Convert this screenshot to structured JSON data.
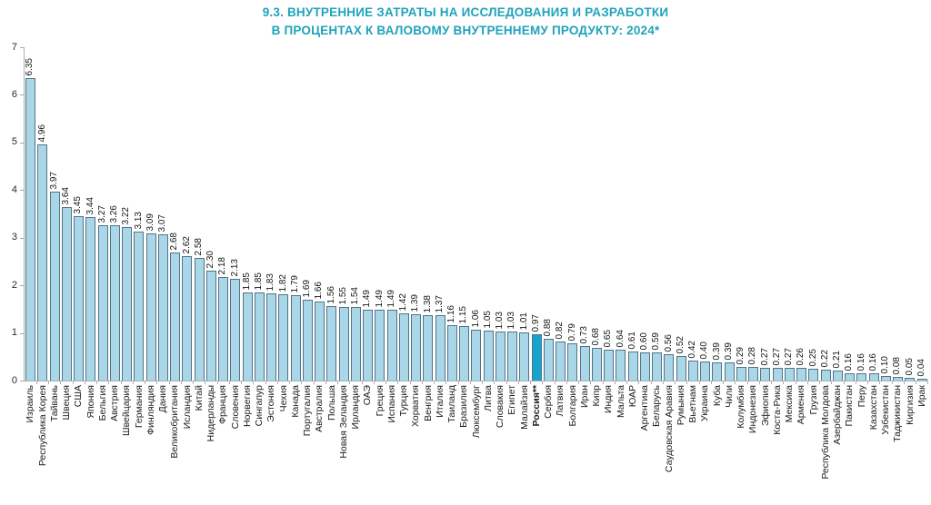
{
  "header": {
    "title_line1": "9.3. ВНУТРЕННИЕ ЗАТРАТЫ НА ИССЛЕДОВАНИЯ И РАЗРАБОТКИ",
    "title_line2": "В ПРОЦЕНТАХ К ВАЛОВОМУ ВНУТРЕННЕМУ ПРОДУКТУ: 2024*"
  },
  "chart_data": {
    "type": "bar",
    "title": "9.3. Внутренние затраты на исследования и разработки в процентах к валовому внутреннему продукту: 2024*",
    "xlabel": "",
    "ylabel": "",
    "ylim": [
      0,
      7
    ],
    "y_ticks": [
      0,
      1,
      2,
      3,
      4,
      5,
      6,
      7
    ],
    "grid": false,
    "legend": false,
    "bar_label_rotation": 90,
    "highlight_category": "Россия**",
    "categories": [
      "Израиль",
      "Республика Корея",
      "Тайвань",
      "Швеция",
      "США",
      "Япония",
      "Бельгия",
      "Австрия",
      "Швейцария",
      "Германия",
      "Финляндия",
      "Дания",
      "Великобритания",
      "Исландия",
      "Китай",
      "Нидерланды",
      "Франция",
      "Словения",
      "Норвегия",
      "Сингапур",
      "Эстония",
      "Чехия",
      "Канада",
      "Португалия",
      "Австралия",
      "Польша",
      "Новая Зеландия",
      "Ирландия",
      "ОАЭ",
      "Греция",
      "Испания",
      "Турция",
      "Хорватия",
      "Венгрия",
      "Италия",
      "Таиланд",
      "Бразилия",
      "Люксембург",
      "Литва",
      "Словакия",
      "Египет",
      "Малайзия",
      "Россия**",
      "Сербия",
      "Латвия",
      "Болгария",
      "Иран",
      "Кипр",
      "Индия",
      "Мальта",
      "ЮАР",
      "Аргентина",
      "Беларусь",
      "Саудовская Аравия",
      "Румыния",
      "Вьетнам",
      "Украина",
      "Куба",
      "Чили",
      "Колумбия",
      "Индонезия",
      "Эфиопия",
      "Коста-Рика",
      "Мексика",
      "Армения",
      "Грузия",
      "Республика Молдова",
      "Азербайджан",
      "Пакистан",
      "Перу",
      "Казахстан",
      "Узбекистан",
      "Таджикистан",
      "Киргизия",
      "Ирак"
    ],
    "values": [
      6.35,
      4.96,
      3.97,
      3.64,
      3.45,
      3.44,
      3.27,
      3.26,
      3.22,
      3.13,
      3.09,
      3.07,
      2.68,
      2.62,
      2.58,
      2.3,
      2.18,
      2.13,
      1.85,
      1.85,
      1.83,
      1.82,
      1.79,
      1.69,
      1.66,
      1.56,
      1.55,
      1.54,
      1.49,
      1.49,
      1.49,
      1.42,
      1.39,
      1.38,
      1.37,
      1.16,
      1.15,
      1.06,
      1.05,
      1.03,
      1.03,
      1.01,
      0.97,
      0.88,
      0.82,
      0.79,
      0.73,
      0.68,
      0.65,
      0.64,
      0.61,
      0.6,
      0.59,
      0.56,
      0.52,
      0.42,
      0.4,
      0.39,
      0.39,
      0.29,
      0.28,
      0.27,
      0.27,
      0.27,
      0.26,
      0.25,
      0.22,
      0.21,
      0.16,
      0.16,
      0.16,
      0.1,
      0.08,
      0.05,
      0.04
    ],
    "colors": {
      "bar_fill": "#a9d7e7",
      "bar_border": "#527487",
      "highlight_fill": "#17a4cc",
      "title": "#1fa3bc",
      "axis": "#a8b2b7",
      "text": "#1b1b1b"
    }
  }
}
